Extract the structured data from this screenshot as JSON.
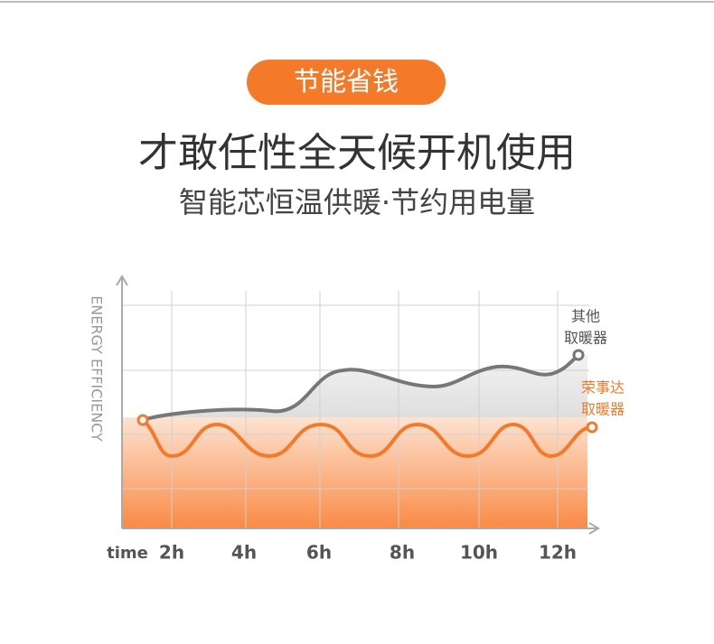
{
  "badge": "节能省钱",
  "headline": "才敢任性全天候开机使用",
  "subline": "智能芯恒温供暖·节约用电量",
  "chart": {
    "y_axis_label": "ENERGY EFFICIENCY",
    "x_axis_label": "time",
    "x_labels": [
      "2h",
      "4h",
      "6h",
      "8h",
      "10h",
      "12h"
    ],
    "legend": {
      "other": [
        "其他",
        "取暖器"
      ],
      "brand": [
        "荣事达",
        "取暖器"
      ]
    }
  }
}
